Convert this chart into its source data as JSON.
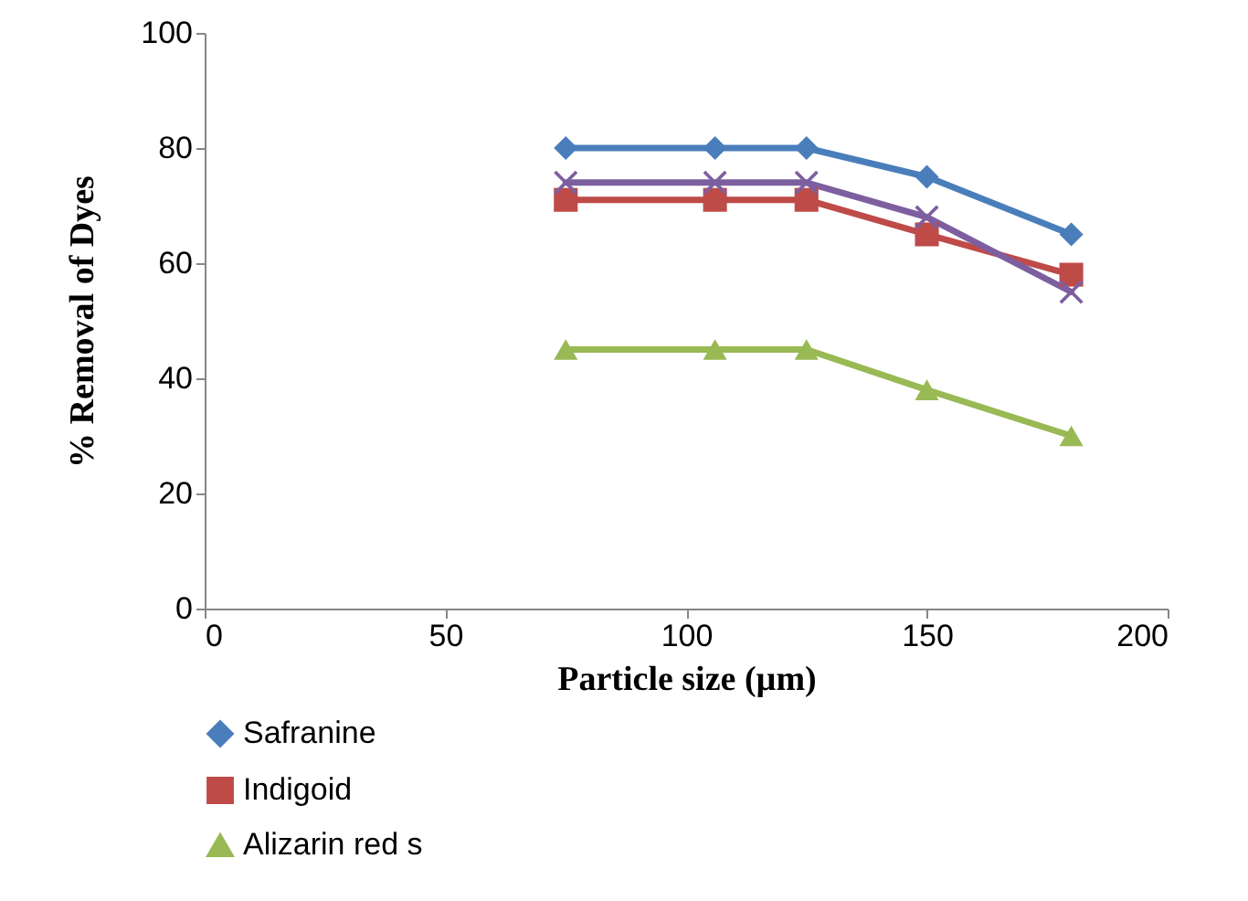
{
  "chart_data": {
    "type": "line",
    "xlabel": "Particle size (µm)",
    "ylabel": "%  Removal of Dyes",
    "x": [
      75,
      106,
      125,
      150,
      180
    ],
    "series": [
      {
        "name": "Safranine",
        "color": "#4a7ebb",
        "marker": "diamond",
        "values": [
          80,
          80,
          80,
          75,
          65
        ]
      },
      {
        "name": "Indigoid",
        "color": "#be4b48",
        "marker": "square",
        "values": [
          71,
          71,
          71,
          65,
          58
        ]
      },
      {
        "name": "Alizarin red s",
        "color": "#98b954",
        "marker": "triangle",
        "values": [
          45,
          45,
          45,
          38,
          30
        ]
      },
      {
        "color": "#7d5fa0",
        "marker": "cross",
        "values": [
          74,
          74,
          74,
          68,
          55
        ]
      }
    ],
    "xlim": [
      0,
      200
    ],
    "xticks": [
      0,
      50,
      100,
      150,
      200
    ],
    "ylim": [
      0,
      100
    ],
    "yticks": [
      0,
      20,
      40,
      60,
      80,
      100
    ],
    "grid": false,
    "legend": "bottom"
  }
}
